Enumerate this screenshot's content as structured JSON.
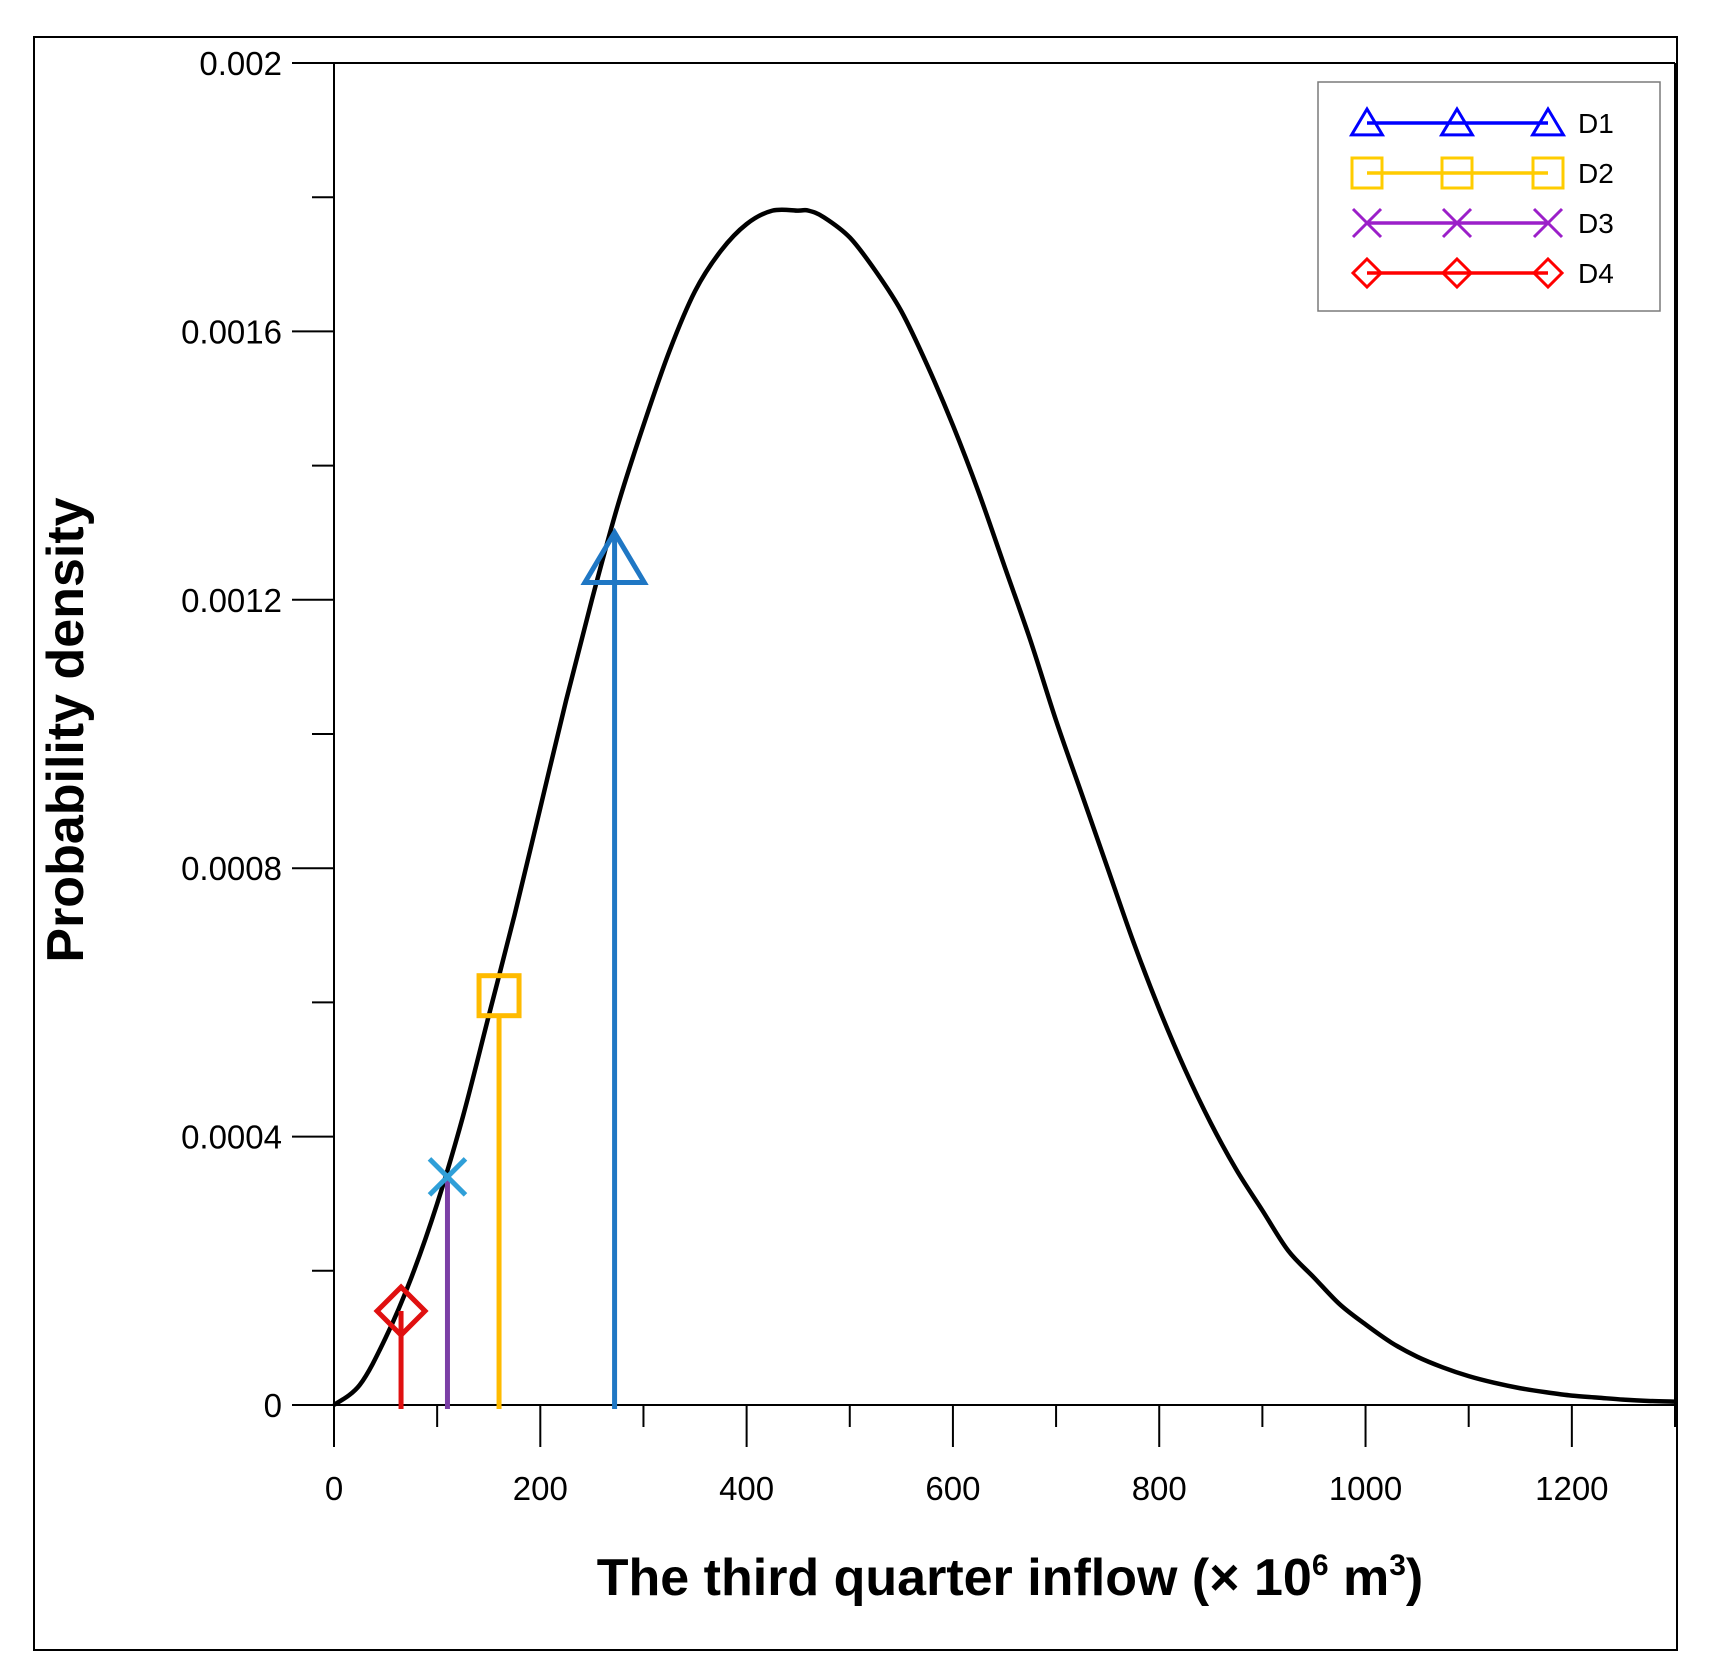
{
  "chart_data": {
    "type": "line",
    "xlabel": "The third quarter inflow (× 10⁶ m³)",
    "xlabel_parts": {
      "main": "The third quarter inflow (× 10",
      "exp1": "6",
      "mid": " m",
      "exp2": "3",
      "end": ")"
    },
    "ylabel": "Probability density",
    "xlim": [
      0,
      1300
    ],
    "ylim": [
      0,
      0.002
    ],
    "x_ticks": [
      0,
      200,
      400,
      600,
      800,
      1000,
      1200
    ],
    "x_tick_labels": [
      "0",
      "200",
      "400",
      "600",
      "800",
      "1000",
      "1200"
    ],
    "x_minor_ticks": [
      100,
      300,
      500,
      700,
      900,
      1100,
      1300
    ],
    "y_ticks": [
      0,
      0.0004,
      0.0008,
      0.0012,
      0.0016,
      0.002
    ],
    "y_tick_labels": [
      "0",
      "0.0004",
      "0.0008",
      "0.0012",
      "0.0016",
      "0.002"
    ],
    "y_minor_ticks": [
      0.0002,
      0.0006,
      0.001,
      0.0014,
      0.0018
    ],
    "curve": {
      "name": "probability density",
      "color": "#000000",
      "x": [
        0,
        25,
        50,
        75,
        100,
        125,
        150,
        175,
        200,
        225,
        250,
        275,
        300,
        325,
        350,
        375,
        400,
        425,
        450,
        460,
        475,
        500,
        525,
        550,
        575,
        600,
        625,
        650,
        675,
        700,
        725,
        750,
        775,
        800,
        825,
        850,
        875,
        900,
        925,
        950,
        975,
        1000,
        1025,
        1050,
        1075,
        1100,
        1125,
        1150,
        1175,
        1200,
        1225,
        1250,
        1275,
        1300
      ],
      "y": [
        0,
        3e-05,
        0.0001,
        0.00019,
        0.0003,
        0.00043,
        0.00058,
        0.00073,
        0.00089,
        0.00105,
        0.0012,
        0.00134,
        0.00146,
        0.00157,
        0.00166,
        0.00172,
        0.00176,
        0.00178,
        0.00178,
        0.00178,
        0.00177,
        0.00174,
        0.00169,
        0.00163,
        0.00155,
        0.00146,
        0.00136,
        0.00125,
        0.00114,
        0.00102,
        0.00091,
        0.0008,
        0.00069,
        0.00059,
        0.0005,
        0.00042,
        0.00035,
        0.00029,
        0.00023,
        0.00019,
        0.00015,
        0.00012,
        9.3e-05,
        7.2e-05,
        5.6e-05,
        4.3e-05,
        3.3e-05,
        2.5e-05,
        1.9e-05,
        1.4e-05,
        1.1e-05,
        8e-06,
        6e-06,
        5e-06
      ]
    },
    "markers": [
      {
        "name": "D1",
        "x": 272,
        "y": 0.00126,
        "symbol": "triangle",
        "color": "#1f77c4"
      },
      {
        "name": "D2",
        "x": 160,
        "y": 0.00061,
        "symbol": "square",
        "color": "#ffbb00"
      },
      {
        "name": "D3",
        "x": 110,
        "y": 0.00034,
        "symbol": "x",
        "color": "#2f9fd8",
        "line_color": "#7b3fa6"
      },
      {
        "name": "D4",
        "x": 65,
        "y": 0.00014,
        "symbol": "diamond",
        "color": "#e01010"
      }
    ],
    "legend": {
      "position": "top-right",
      "entries": [
        {
          "label": "D1",
          "symbol": "triangle",
          "color": "#0000ff"
        },
        {
          "label": "D2",
          "symbol": "square",
          "color": "#ffcc00"
        },
        {
          "label": "D3",
          "symbol": "x",
          "color": "#9b1fc9"
        },
        {
          "label": "D4",
          "symbol": "diamond",
          "color": "#ff0000"
        }
      ]
    }
  }
}
